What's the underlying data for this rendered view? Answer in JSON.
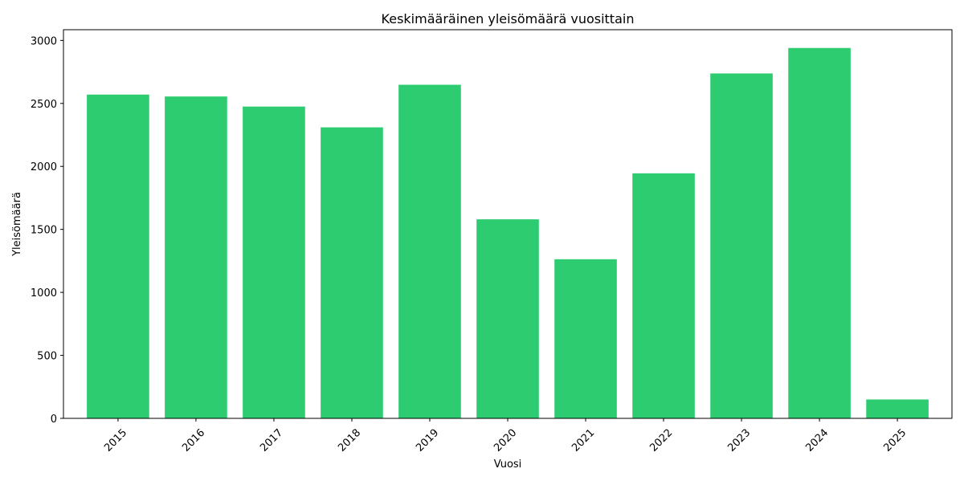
{
  "chart_data": {
    "type": "bar",
    "title": "Keskimääräinen yleisömäärä vuosittain",
    "xlabel": "Vuosi",
    "ylabel": "Yleisömäärä",
    "categories": [
      "2015",
      "2016",
      "2017",
      "2018",
      "2019",
      "2020",
      "2021",
      "2022",
      "2023",
      "2024",
      "2025"
    ],
    "values": [
      2570,
      2555,
      2475,
      2310,
      2648,
      1580,
      1263,
      1945,
      2738,
      2940,
      150
    ],
    "ylim": [
      0,
      3085
    ],
    "yticks": [
      0,
      500,
      1000,
      1500,
      2000,
      2500,
      3000
    ],
    "bar_color": "#2ecc71",
    "grid": false,
    "xtick_rotation": "45deg"
  }
}
